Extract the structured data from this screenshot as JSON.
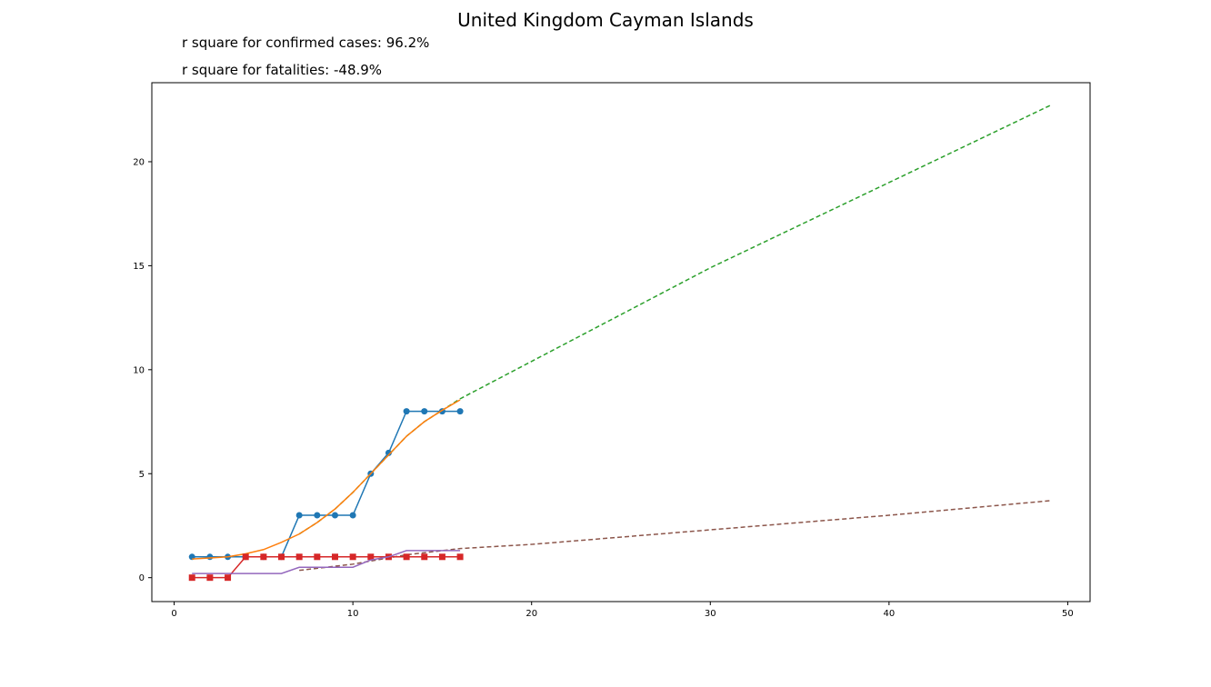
{
  "chart_data": {
    "type": "line",
    "title": "United Kingdom Cayman Islands",
    "annotations": [
      "r square for confirmed cases: 96.2%",
      "r square for fatalities: -48.9%"
    ],
    "xlabel": "",
    "ylabel": "",
    "xlim": [
      -1.25,
      51.25
    ],
    "ylim": [
      -1.15,
      23.8
    ],
    "xticks": [
      0,
      10,
      20,
      30,
      40,
      50
    ],
    "yticks": [
      0,
      5,
      10,
      15,
      20
    ],
    "grid": false,
    "series": [
      {
        "key": "confirmed",
        "color": "#1f77b4",
        "style": "solid",
        "marker": "circle",
        "x": [
          1,
          2,
          3,
          4,
          5,
          6,
          7,
          8,
          9,
          10,
          11,
          12,
          13,
          14,
          15,
          16
        ],
        "y": [
          1,
          1,
          1,
          1,
          1,
          1,
          3,
          3,
          3,
          3,
          5,
          6,
          8,
          8,
          8,
          8
        ]
      },
      {
        "key": "confirmed-fit",
        "color": "#ff7f0e",
        "style": "solid",
        "marker": "none",
        "x": [
          1,
          2,
          3,
          4,
          5,
          6,
          7,
          8,
          9,
          10,
          11,
          12,
          13,
          14,
          15,
          16
        ],
        "y": [
          0.9,
          0.95,
          1.0,
          1.15,
          1.35,
          1.7,
          2.1,
          2.65,
          3.3,
          4.1,
          5.0,
          5.9,
          6.8,
          7.5,
          8.05,
          8.55
        ]
      },
      {
        "key": "confirmed-projection",
        "color": "#2ca02c",
        "style": "dashed",
        "marker": "none",
        "x": [
          7,
          8,
          9,
          10,
          11,
          12,
          13,
          14,
          15,
          16,
          20,
          30,
          40,
          49
        ],
        "y": [
          2.1,
          2.65,
          3.3,
          4.1,
          5.0,
          5.9,
          6.8,
          7.5,
          8.05,
          8.6,
          10.4,
          14.9,
          19.0,
          22.7
        ]
      },
      {
        "key": "fatalities",
        "color": "#d62728",
        "style": "solid",
        "marker": "square",
        "x": [
          1,
          2,
          3,
          4,
          5,
          6,
          7,
          8,
          9,
          10,
          11,
          12,
          13,
          14,
          15,
          16
        ],
        "y": [
          0,
          0,
          0,
          1,
          1,
          1,
          1,
          1,
          1,
          1,
          1,
          1,
          1,
          1,
          1,
          1
        ]
      },
      {
        "key": "fatalities-fit",
        "color": "#9467bd",
        "style": "solid",
        "marker": "none",
        "x": [
          1,
          2,
          3,
          4,
          5,
          6,
          7,
          8,
          9,
          10,
          11,
          12,
          13,
          14,
          15,
          16
        ],
        "y": [
          0.2,
          0.2,
          0.2,
          0.2,
          0.2,
          0.2,
          0.5,
          0.5,
          0.5,
          0.5,
          0.85,
          1.0,
          1.3,
          1.3,
          1.3,
          1.3
        ]
      },
      {
        "key": "fatalities-projection",
        "color": "#8c564b",
        "style": "dashed",
        "marker": "none",
        "x": [
          7,
          10,
          13,
          16,
          20,
          30,
          40,
          49
        ],
        "y": [
          0.35,
          0.65,
          1.1,
          1.4,
          1.6,
          2.3,
          3.0,
          3.7
        ]
      }
    ]
  }
}
